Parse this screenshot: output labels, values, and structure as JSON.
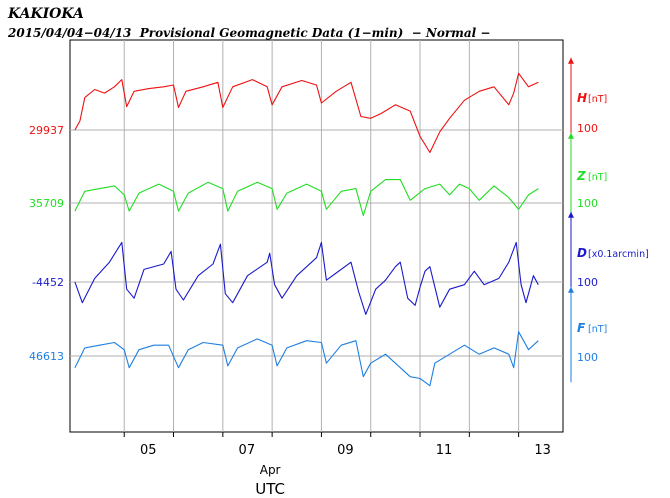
{
  "header": {
    "station": "KAKIOKA",
    "subtitle": "2015/04/04−04/13  Provisional Geomagnetic Data (1−min)  − Normal −"
  },
  "chart_data": {
    "type": "line",
    "title": "KAKIOKA",
    "subtitle": "2015/04/04−04/13  Provisional Geomagnetic Data (1−min)  − Normal −",
    "xlabel": "UTC",
    "x_month_label": "Apr",
    "x_tick_labels": [
      "05",
      "07",
      "09",
      "11",
      "13"
    ],
    "x_unit": "day of April 2015 (UTC)",
    "xlim": [
      3.9,
      13.9
    ],
    "x_tick_positions": [
      5,
      6,
      7,
      8,
      9,
      10,
      11,
      12,
      13
    ],
    "x_labeled_ticks": [
      5,
      7,
      9,
      11,
      13
    ],
    "grid": true,
    "series": [
      {
        "name": "H",
        "unit": "[nT]",
        "baseline": "29937",
        "scale_label": "100",
        "color": "#ee1111",
        "scale_units_per_bar": 100,
        "points": [
          [
            4.0,
            29937
          ],
          [
            4.1,
            29947
          ],
          [
            4.2,
            29973
          ],
          [
            4.4,
            29982
          ],
          [
            4.6,
            29978
          ],
          [
            4.8,
            29985
          ],
          [
            4.95,
            29993
          ],
          [
            5.05,
            29963
          ],
          [
            5.2,
            29980
          ],
          [
            5.5,
            29983
          ],
          [
            5.8,
            29985
          ],
          [
            6.0,
            29987
          ],
          [
            6.1,
            29962
          ],
          [
            6.25,
            29980
          ],
          [
            6.6,
            29985
          ],
          [
            6.9,
            29990
          ],
          [
            7.0,
            29962
          ],
          [
            7.2,
            29985
          ],
          [
            7.6,
            29993
          ],
          [
            7.9,
            29985
          ],
          [
            8.0,
            29965
          ],
          [
            8.2,
            29985
          ],
          [
            8.6,
            29992
          ],
          [
            8.9,
            29987
          ],
          [
            9.0,
            29967
          ],
          [
            9.3,
            29980
          ],
          [
            9.6,
            29990
          ],
          [
            9.8,
            29952
          ],
          [
            10.0,
            29950
          ],
          [
            10.2,
            29955
          ],
          [
            10.5,
            29965
          ],
          [
            10.8,
            29958
          ],
          [
            11.0,
            29930
          ],
          [
            11.2,
            29912
          ],
          [
            11.4,
            29935
          ],
          [
            11.6,
            29950
          ],
          [
            11.9,
            29970
          ],
          [
            12.2,
            29980
          ],
          [
            12.5,
            29985
          ],
          [
            12.8,
            29965
          ],
          [
            12.9,
            29978
          ],
          [
            13.0,
            30000
          ],
          [
            13.2,
            29985
          ],
          [
            13.4,
            29990
          ]
        ]
      },
      {
        "name": "Z",
        "unit": "[nT]",
        "baseline": "35709",
        "scale_label": "100",
        "color": "#22dd22",
        "scale_units_per_bar": 100,
        "points": [
          [
            4.0,
            35700
          ],
          [
            4.2,
            35722
          ],
          [
            4.5,
            35725
          ],
          [
            4.8,
            35728
          ],
          [
            5.0,
            35718
          ],
          [
            5.1,
            35700
          ],
          [
            5.3,
            35720
          ],
          [
            5.7,
            35730
          ],
          [
            6.0,
            35722
          ],
          [
            6.1,
            35700
          ],
          [
            6.3,
            35720
          ],
          [
            6.7,
            35732
          ],
          [
            7.0,
            35725
          ],
          [
            7.1,
            35700
          ],
          [
            7.3,
            35722
          ],
          [
            7.7,
            35732
          ],
          [
            8.0,
            35725
          ],
          [
            8.1,
            35702
          ],
          [
            8.3,
            35720
          ],
          [
            8.7,
            35730
          ],
          [
            9.0,
            35722
          ],
          [
            9.1,
            35702
          ],
          [
            9.4,
            35722
          ],
          [
            9.7,
            35725
          ],
          [
            9.85,
            35695
          ],
          [
            10.0,
            35722
          ],
          [
            10.3,
            35735
          ],
          [
            10.6,
            35735
          ],
          [
            10.8,
            35712
          ],
          [
            11.1,
            35725
          ],
          [
            11.4,
            35730
          ],
          [
            11.6,
            35718
          ],
          [
            11.8,
            35730
          ],
          [
            12.0,
            35725
          ],
          [
            12.2,
            35712
          ],
          [
            12.5,
            35728
          ],
          [
            12.8,
            35715
          ],
          [
            13.0,
            35702
          ],
          [
            13.2,
            35718
          ],
          [
            13.4,
            35725
          ]
        ]
      },
      {
        "name": "D",
        "unit": "[x0.1arcmin]",
        "baseline": "-4452",
        "scale_label": "100",
        "color": "#1a1acc",
        "scale_units_per_bar": 100,
        "points": [
          [
            4.0,
            -4452
          ],
          [
            4.15,
            -4475
          ],
          [
            4.4,
            -4448
          ],
          [
            4.7,
            -4430
          ],
          [
            4.95,
            -4408
          ],
          [
            5.05,
            -4460
          ],
          [
            5.2,
            -4470
          ],
          [
            5.4,
            -4438
          ],
          [
            5.8,
            -4432
          ],
          [
            5.95,
            -4418
          ],
          [
            6.05,
            -4460
          ],
          [
            6.2,
            -4472
          ],
          [
            6.5,
            -4445
          ],
          [
            6.8,
            -4432
          ],
          [
            6.95,
            -4410
          ],
          [
            7.05,
            -4465
          ],
          [
            7.2,
            -4475
          ],
          [
            7.5,
            -4445
          ],
          [
            7.9,
            -4430
          ],
          [
            7.95,
            -4420
          ],
          [
            8.05,
            -4455
          ],
          [
            8.2,
            -4470
          ],
          [
            8.5,
            -4445
          ],
          [
            8.9,
            -4425
          ],
          [
            9.0,
            -4408
          ],
          [
            9.1,
            -4450
          ],
          [
            9.3,
            -4442
          ],
          [
            9.6,
            -4430
          ],
          [
            9.75,
            -4462
          ],
          [
            9.9,
            -4488
          ],
          [
            10.1,
            -4460
          ],
          [
            10.3,
            -4450
          ],
          [
            10.5,
            -4435
          ],
          [
            10.6,
            -4430
          ],
          [
            10.75,
            -4470
          ],
          [
            10.9,
            -4478
          ],
          [
            11.0,
            -4458
          ],
          [
            11.1,
            -4440
          ],
          [
            11.2,
            -4435
          ],
          [
            11.4,
            -4480
          ],
          [
            11.6,
            -4460
          ],
          [
            11.9,
            -4455
          ],
          [
            12.1,
            -4440
          ],
          [
            12.3,
            -4455
          ],
          [
            12.6,
            -4448
          ],
          [
            12.8,
            -4430
          ],
          [
            12.95,
            -4408
          ],
          [
            13.05,
            -4455
          ],
          [
            13.15,
            -4475
          ],
          [
            13.3,
            -4445
          ],
          [
            13.4,
            -4455
          ]
        ]
      },
      {
        "name": "F",
        "unit": "[nT]",
        "baseline": "46613",
        "scale_label": "100",
        "color": "#1f7fe0",
        "scale_units_per_bar": 100,
        "points": [
          [
            4.0,
            46600
          ],
          [
            4.2,
            46622
          ],
          [
            4.5,
            46625
          ],
          [
            4.8,
            46628
          ],
          [
            5.0,
            46620
          ],
          [
            5.1,
            46600
          ],
          [
            5.3,
            46620
          ],
          [
            5.6,
            46625
          ],
          [
            5.9,
            46625
          ],
          [
            6.1,
            46600
          ],
          [
            6.3,
            46620
          ],
          [
            6.6,
            46628
          ],
          [
            7.0,
            46625
          ],
          [
            7.1,
            46602
          ],
          [
            7.3,
            46622
          ],
          [
            7.7,
            46632
          ],
          [
            8.0,
            46625
          ],
          [
            8.1,
            46602
          ],
          [
            8.3,
            46622
          ],
          [
            8.7,
            46630
          ],
          [
            9.0,
            46628
          ],
          [
            9.1,
            46605
          ],
          [
            9.4,
            46625
          ],
          [
            9.7,
            46630
          ],
          [
            9.85,
            46590
          ],
          [
            10.0,
            46605
          ],
          [
            10.3,
            46615
          ],
          [
            10.5,
            46605
          ],
          [
            10.8,
            46590
          ],
          [
            11.0,
            46588
          ],
          [
            11.2,
            46580
          ],
          [
            11.3,
            46605
          ],
          [
            11.6,
            46615
          ],
          [
            11.9,
            46625
          ],
          [
            12.2,
            46615
          ],
          [
            12.5,
            46622
          ],
          [
            12.8,
            46615
          ],
          [
            12.9,
            46600
          ],
          [
            13.0,
            46640
          ],
          [
            13.2,
            46620
          ],
          [
            13.4,
            46630
          ]
        ]
      }
    ]
  }
}
